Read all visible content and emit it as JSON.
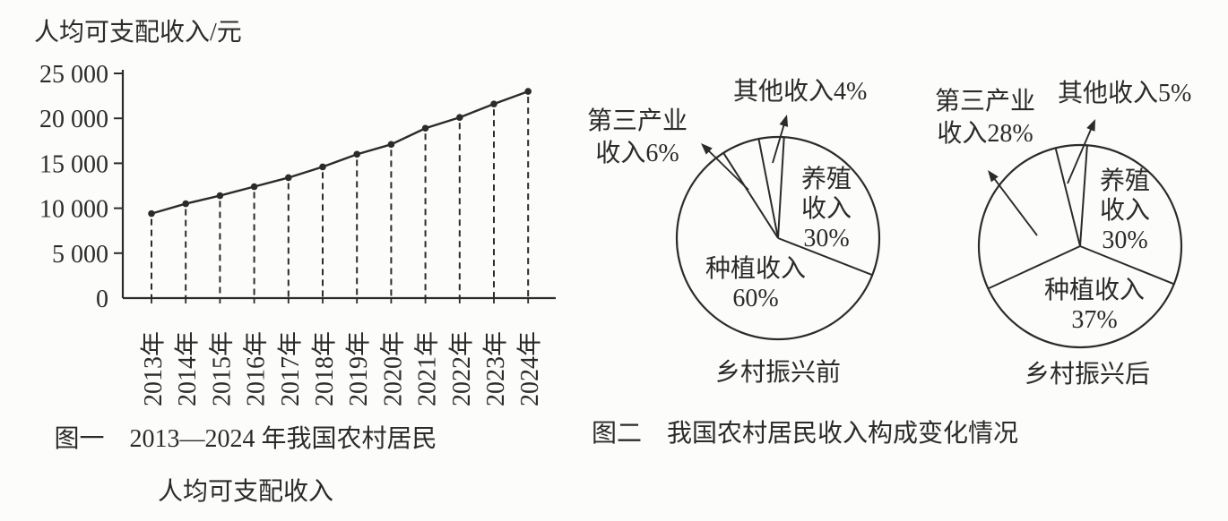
{
  "page": {
    "background": "#fcfcfa",
    "ink": "#2b2b2b"
  },
  "figure1": {
    "y_axis_title": "人均可支配收入/元",
    "caption_line1": "图一　2013—2024 年我国农村居民",
    "caption_line2": "人均可支配收入"
  },
  "figure2": {
    "caption": "图二　我国农村居民收入构成变化情况",
    "pie_before": {
      "caption": "乡村振兴前",
      "other_label": "其他收入4%",
      "tertiary_line1": "第三产业",
      "tertiary_line2": "收入6%",
      "breeding_line1": "养殖",
      "breeding_line2": "收入",
      "breeding_line3": "30%",
      "planting_line1": "种植收入",
      "planting_line2": "60%"
    },
    "pie_after": {
      "caption": "乡村振兴后",
      "other_label": "其他收入5%",
      "tertiary_line1": "第三产业",
      "tertiary_line2": "收入28%",
      "breeding_line1": "养殖",
      "breeding_line2": "收入",
      "breeding_line3": "30%",
      "planting_line1": "种植收入",
      "planting_line2": "37%"
    }
  },
  "chart_data": [
    {
      "type": "line",
      "title": "图一 2013—2024年我国农村居民人均可支配收入",
      "ylabel": "人均可支配收入/元",
      "x_categories": [
        "2013年",
        "2014年",
        "2015年",
        "2016年",
        "2017年",
        "2018年",
        "2019年",
        "2020年",
        "2021年",
        "2022年",
        "2023年",
        "2024年"
      ],
      "values": [
        9400,
        10500,
        11400,
        12400,
        13400,
        14600,
        16000,
        17100,
        18900,
        20100,
        21600,
        23000
      ],
      "ylim": [
        0,
        25000
      ],
      "yticks": [
        0,
        5000,
        10000,
        15000,
        20000,
        25000
      ],
      "ytick_labels": [
        "0",
        "5 000",
        "10 000",
        "15 000",
        "20 000",
        "25 000"
      ],
      "grid": false,
      "marker": "filled-dot",
      "drop_lines": "dashed-vertical",
      "legend": "none"
    },
    {
      "type": "pie",
      "title": "乡村振兴前",
      "labels": [
        "其他收入",
        "养殖收入",
        "种植收入",
        "第三产业收入"
      ],
      "values": [
        4,
        30,
        60,
        6
      ],
      "unit": "%",
      "style": "outline-monochrome",
      "start_angle_deg": -11
    },
    {
      "type": "pie",
      "title": "乡村振兴后",
      "labels": [
        "其他收入",
        "养殖收入",
        "种植收入",
        "第三产业收入"
      ],
      "values": [
        5,
        30,
        37,
        28
      ],
      "unit": "%",
      "style": "outline-monochrome",
      "start_angle_deg": -14
    }
  ]
}
